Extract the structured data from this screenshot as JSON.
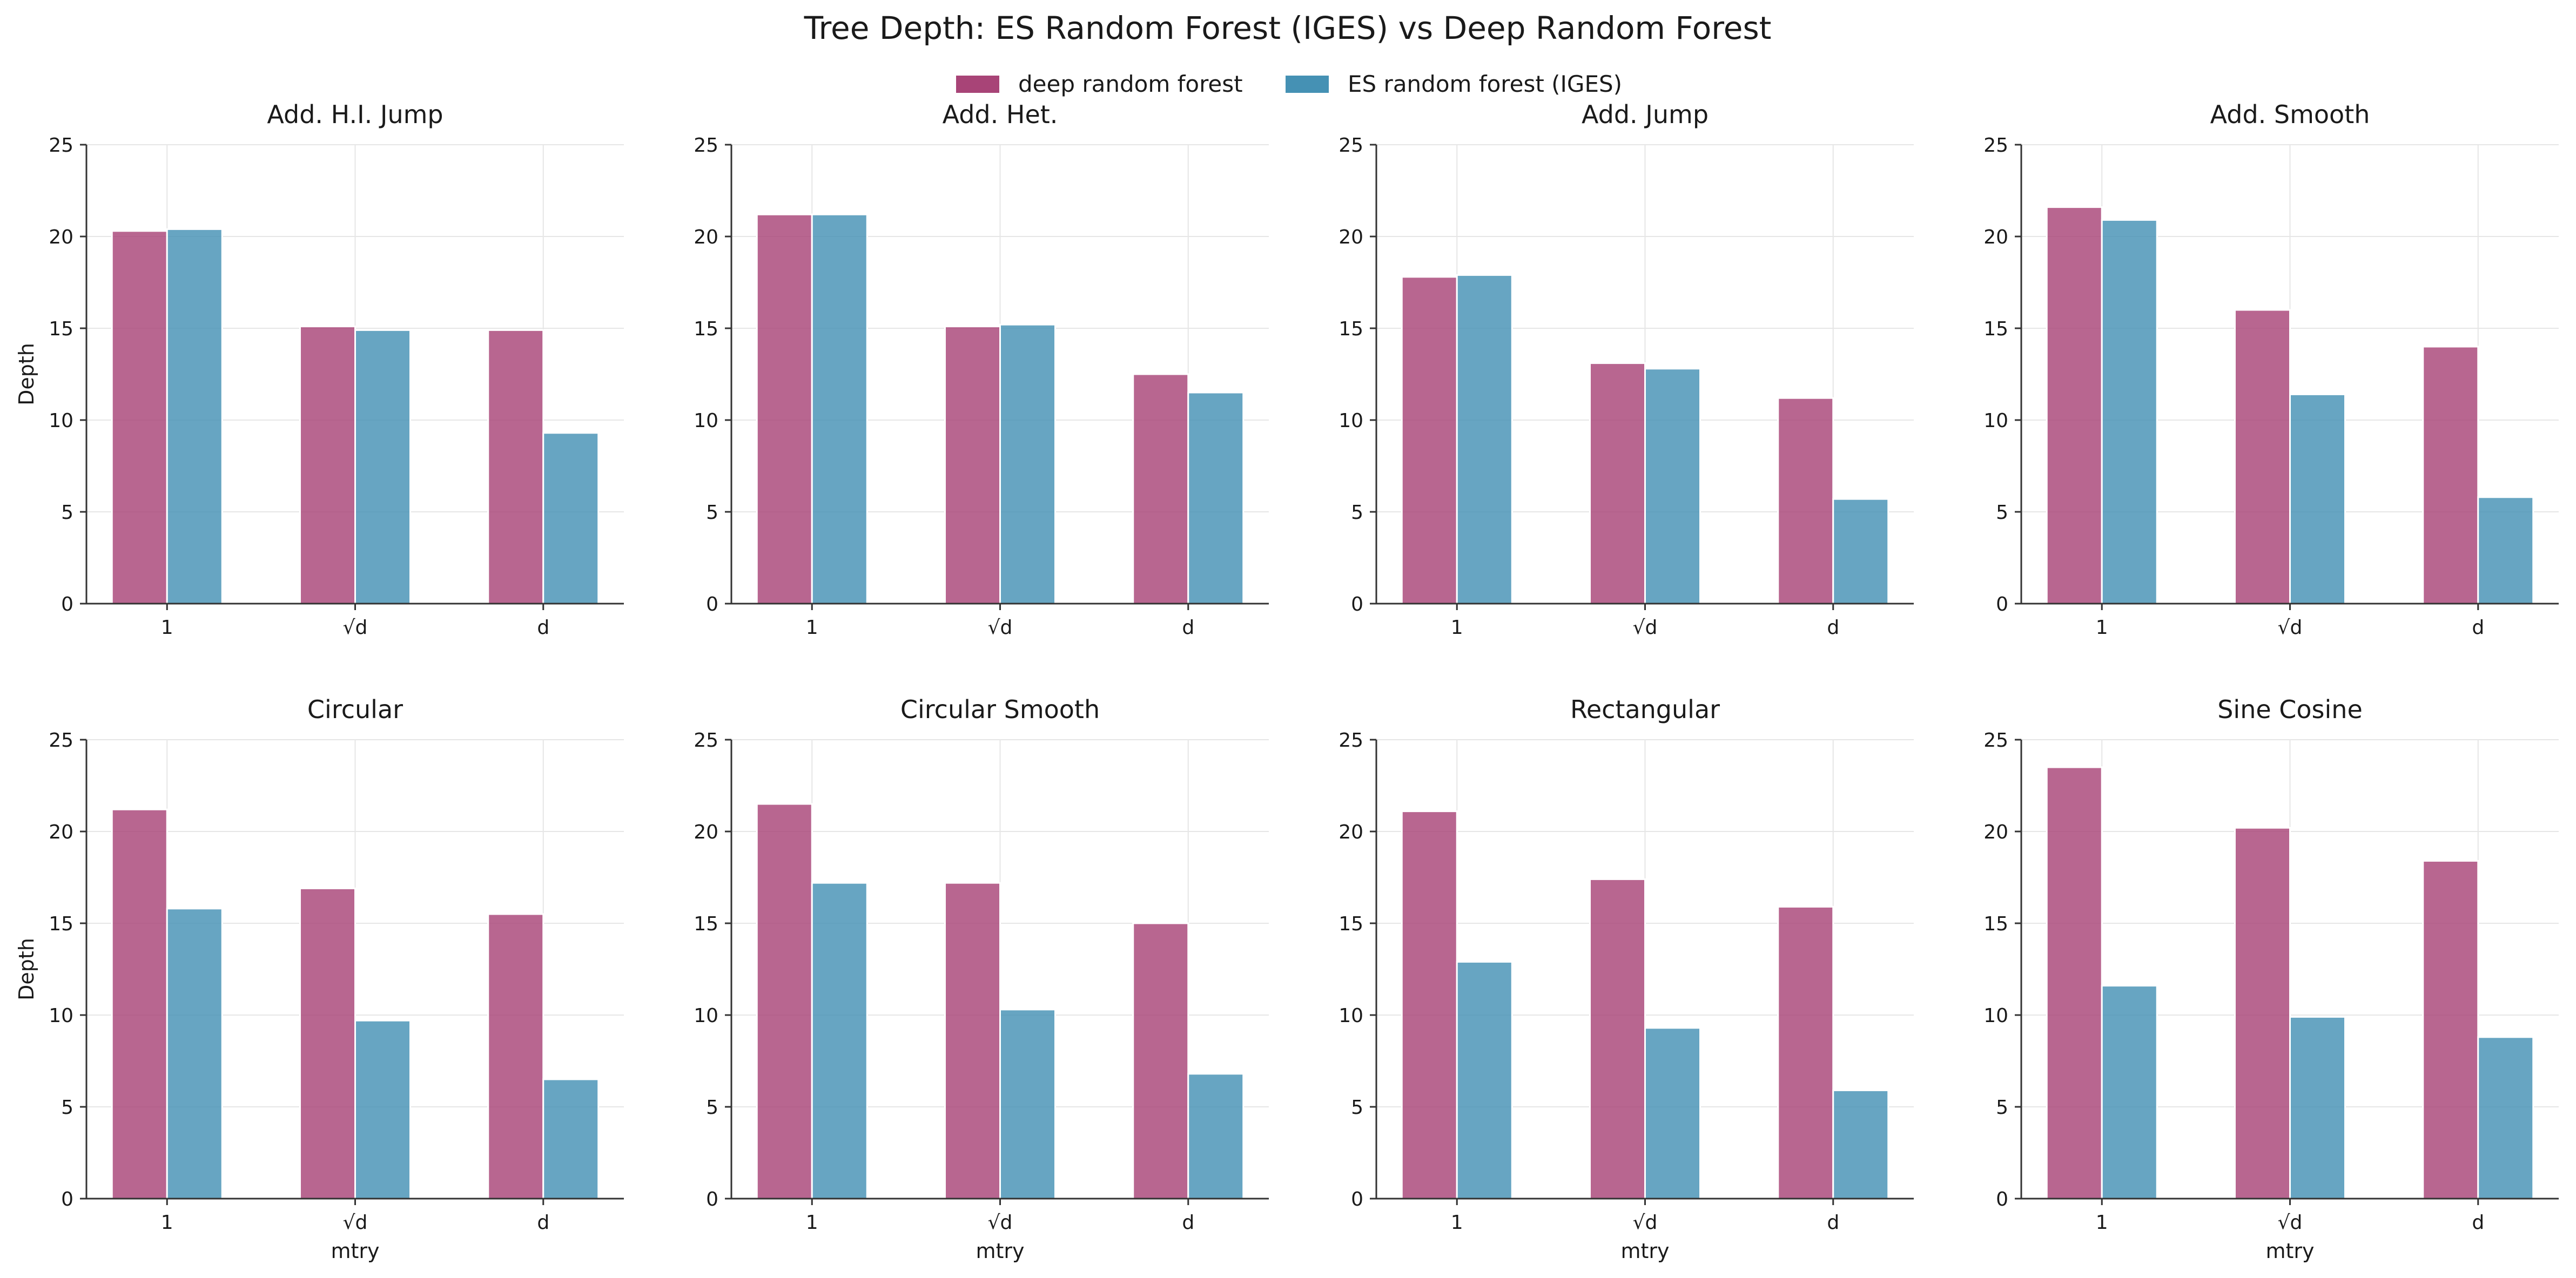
{
  "chart_data": {
    "type": "bar",
    "title": "Tree Depth: ES Random Forest (IGES) vs Deep Random Forest",
    "legend": {
      "placement": "top-center"
    },
    "colors": {
      "deep random forest": "#a84477",
      "ES random forest (IGES)": "#4591b4"
    },
    "series_names": [
      "deep random forest",
      "ES random forest (IGES)"
    ],
    "categories": [
      "1",
      "√d",
      "d"
    ],
    "ylim": [
      0,
      25
    ],
    "yticks": [
      0,
      5,
      10,
      15,
      20,
      25
    ],
    "ylabel": "Depth",
    "xlabel": "mtry",
    "grid": true,
    "panels": [
      {
        "title": "Add. H.I. Jump",
        "series": [
          {
            "name": "deep random forest",
            "values": [
              20.3,
              15.1,
              14.9
            ]
          },
          {
            "name": "ES random forest (IGES)",
            "values": [
              20.4,
              14.9,
              9.3
            ]
          }
        ]
      },
      {
        "title": "Add. Het.",
        "series": [
          {
            "name": "deep random forest",
            "values": [
              21.2,
              15.1,
              12.5
            ]
          },
          {
            "name": "ES random forest (IGES)",
            "values": [
              21.2,
              15.2,
              11.5
            ]
          }
        ]
      },
      {
        "title": "Add. Jump",
        "series": [
          {
            "name": "deep random forest",
            "values": [
              17.8,
              13.1,
              11.2
            ]
          },
          {
            "name": "ES random forest (IGES)",
            "values": [
              17.9,
              12.8,
              5.7
            ]
          }
        ]
      },
      {
        "title": "Add. Smooth",
        "series": [
          {
            "name": "deep random forest",
            "values": [
              21.6,
              16.0,
              14.0
            ]
          },
          {
            "name": "ES random forest (IGES)",
            "values": [
              20.9,
              11.4,
              5.8
            ]
          }
        ]
      },
      {
        "title": "Circular",
        "series": [
          {
            "name": "deep random forest",
            "values": [
              21.2,
              16.9,
              15.5
            ]
          },
          {
            "name": "ES random forest (IGES)",
            "values": [
              15.8,
              9.7,
              6.5
            ]
          }
        ]
      },
      {
        "title": "Circular Smooth",
        "series": [
          {
            "name": "deep random forest",
            "values": [
              21.5,
              17.2,
              15.0
            ]
          },
          {
            "name": "ES random forest (IGES)",
            "values": [
              17.2,
              10.3,
              6.8
            ]
          }
        ]
      },
      {
        "title": "Rectangular",
        "series": [
          {
            "name": "deep random forest",
            "values": [
              21.1,
              17.4,
              15.9
            ]
          },
          {
            "name": "ES random forest (IGES)",
            "values": [
              12.9,
              9.3,
              5.9
            ]
          }
        ]
      },
      {
        "title": "Sine Cosine",
        "series": [
          {
            "name": "deep random forest",
            "values": [
              23.5,
              20.2,
              18.4
            ]
          },
          {
            "name": "ES random forest (IGES)",
            "values": [
              11.6,
              9.9,
              8.8
            ]
          }
        ]
      }
    ]
  }
}
